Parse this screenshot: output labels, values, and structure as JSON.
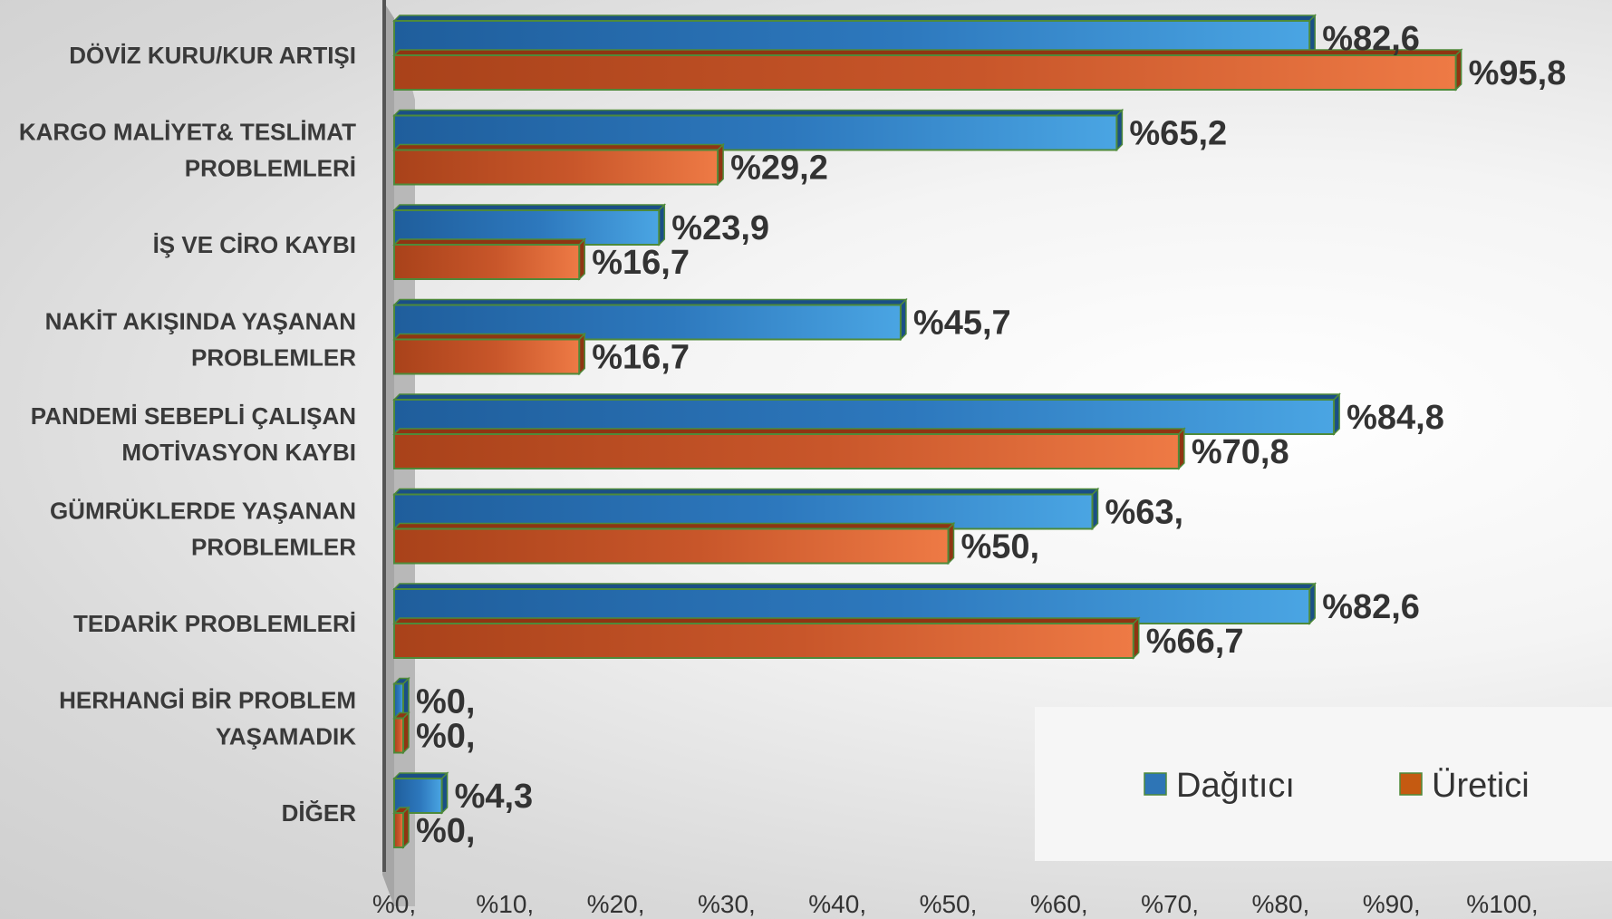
{
  "chart_data": {
    "type": "bar",
    "orientation": "horizontal",
    "categories": [
      [
        "DÖVİZ KURU/KUR ARTIŞI"
      ],
      [
        "KARGO MALİYET& TESLİMAT",
        "PROBLEMLERİ"
      ],
      [
        "İŞ VE CİRO KAYBI"
      ],
      [
        "NAKİT AKIŞINDA YAŞANAN",
        "PROBLEMLER"
      ],
      [
        "PANDEMİ SEBEPLİ ÇALIŞAN",
        "MOTİVASYON KAYBI"
      ],
      [
        "GÜMRÜKLERDE YAŞANAN",
        "PROBLEMLER"
      ],
      [
        "TEDARİK PROBLEMLERİ"
      ],
      [
        "HERHANGİ BİR PROBLEM",
        "YAŞAMADIK"
      ],
      [
        "DİĞER"
      ]
    ],
    "series": [
      {
        "name": "Dağıtıcı",
        "values": [
          82.6,
          65.2,
          23.9,
          45.7,
          84.8,
          63,
          82.6,
          0,
          4.3
        ],
        "labels": [
          "%82,6",
          "%65,2",
          "%23,9",
          "%45,7",
          "%84,8",
          "%63,",
          "%82,6",
          "%0,",
          "%4,3"
        ]
      },
      {
        "name": "Üretici",
        "values": [
          95.8,
          29.2,
          16.7,
          16.7,
          70.8,
          50,
          66.7,
          0,
          0
        ],
        "labels": [
          "%95,8",
          "%29,2",
          "%16,7",
          "%16,7",
          "%70,8",
          "%50,",
          "%66,7",
          "%0,",
          "%0,"
        ]
      }
    ],
    "x_ticks": [
      "%0,",
      "%10,",
      "%20,",
      "%30,",
      "%40,",
      "%50,",
      "%60,",
      "%70,",
      "%80,",
      "%90,",
      "%100,"
    ],
    "xlim": [
      0,
      100
    ],
    "grid": false,
    "legend_position": "bottom-right",
    "colors": {
      "Dağıtıcı": "#2e75b6",
      "Üretici": "#c55a11",
      "edge": "#4e8a3a",
      "axis_wall": "#a6a6a6"
    }
  }
}
